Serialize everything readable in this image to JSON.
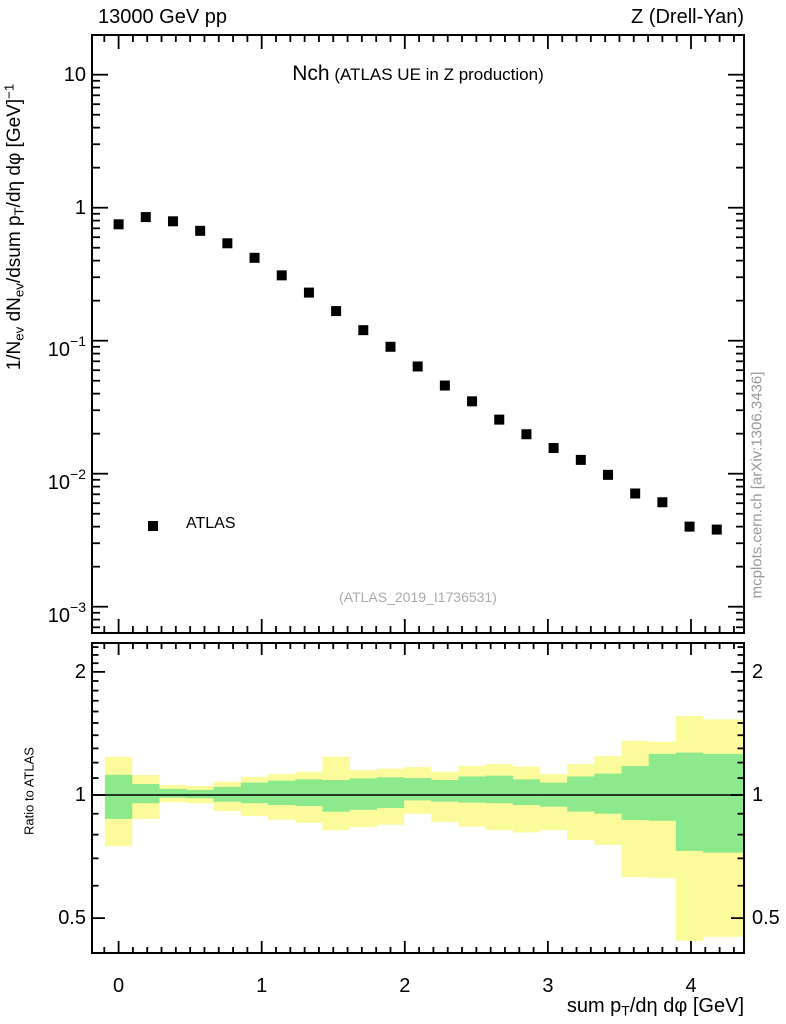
{
  "header": {
    "left": "13000 GeV pp",
    "right": "Z (Drell-Yan)"
  },
  "title": {
    "main": "Nch",
    "sub": " (ATLAS UE in Z production)"
  },
  "watermark": "(ATLAS_2019_I1736531)",
  "side_note": "mcplots.cern.ch [arXiv:1306.3436]",
  "legend": {
    "label": "ATLAS"
  },
  "ratio_label": "Ratio to ATLAS",
  "colors": {
    "band_outer": "#FBFB9C",
    "band_inner": "#8CE98C",
    "marker": "#000000",
    "frame": "#000000",
    "side_note_gray": "#999999",
    "watermark_gray": "#ababab"
  },
  "axes": {
    "x": {
      "label_parts": [
        {
          "t": "sum p"
        },
        {
          "t": "T",
          "s": "sub"
        },
        {
          "t": "/dη dφ [GeV]"
        }
      ],
      "ticks": [
        {
          "v": 0,
          "t": "0"
        },
        {
          "v": 1,
          "t": "1"
        },
        {
          "v": 2,
          "t": "2"
        },
        {
          "v": 3,
          "t": "3"
        },
        {
          "v": 4,
          "t": "4"
        }
      ],
      "minor_step": 0.1,
      "range": [
        -0.186,
        4.372
      ]
    },
    "y_main": {
      "label_parts": [
        {
          "t": "1/N"
        },
        {
          "t": "ev",
          "s": "sub"
        },
        {
          "t": " dN"
        },
        {
          "t": "ev",
          "s": "sub"
        },
        {
          "t": "/dsum p"
        },
        {
          "t": "T",
          "s": "sub"
        },
        {
          "t": "/dη dφ  [GeV]"
        },
        {
          "t": "−1",
          "s": "sup"
        }
      ],
      "scale": "log",
      "range": [
        0.00063,
        19.9
      ],
      "ticks": [
        {
          "v": 10,
          "parts": [
            {
              "t": "10"
            }
          ]
        },
        {
          "v": 1,
          "parts": [
            {
              "t": "1"
            }
          ]
        },
        {
          "v": 0.1,
          "parts": [
            {
              "t": "10"
            },
            {
              "t": "−1",
              "s": "sup"
            }
          ]
        },
        {
          "v": 0.01,
          "parts": [
            {
              "t": "10"
            },
            {
              "t": "−2",
              "s": "sup"
            }
          ]
        },
        {
          "v": 0.001,
          "parts": [
            {
              "t": "10"
            },
            {
              "t": "−3",
              "s": "sup"
            }
          ]
        }
      ]
    },
    "y_ratio": {
      "scale": "log",
      "range": [
        0.411,
        2.35
      ],
      "ticks": [
        {
          "v": 2,
          "t": "2"
        },
        {
          "v": 1,
          "t": "1"
        },
        {
          "v": 0.5,
          "t": "0.5"
        }
      ]
    }
  },
  "chart_data": [
    {
      "type": "scatter",
      "panel": "main",
      "title": "Nch (ATLAS UE in Z production)",
      "xlabel": "sum pT/dη dφ [GeV]",
      "ylabel": "1/Nev dNev/dsum pT/dη dφ [GeV]^-1",
      "xscale": "linear",
      "yscale": "log",
      "xlim": [
        -0.19,
        4.37
      ],
      "ylim": [
        0.00063,
        19.9
      ],
      "series": [
        {
          "name": "ATLAS",
          "marker": "filled-square",
          "color": "#000000",
          "x": [
            0.0,
            0.19,
            0.38,
            0.57,
            0.76,
            0.95,
            1.14,
            1.33,
            1.52,
            1.71,
            1.9,
            2.09,
            2.28,
            2.47,
            2.66,
            2.85,
            3.04,
            3.23,
            3.42,
            3.61,
            3.8,
            3.99,
            4.18
          ],
          "y": [
            0.75,
            0.85,
            0.79,
            0.67,
            0.54,
            0.42,
            0.31,
            0.23,
            0.167,
            0.12,
            0.09,
            0.064,
            0.046,
            0.035,
            0.0255,
            0.0198,
            0.0156,
            0.0127,
            0.0098,
            0.0071,
            0.0061,
            0.004,
            0.0038
          ]
        }
      ]
    },
    {
      "type": "area",
      "panel": "ratio",
      "title": "Ratio to ATLAS",
      "yscale": "log",
      "ylim": [
        0.41,
        2.35
      ],
      "bin_half_width": 0.0955,
      "x": [
        0.0,
        0.19,
        0.38,
        0.57,
        0.76,
        0.95,
        1.14,
        1.33,
        1.52,
        1.71,
        1.9,
        2.09,
        2.28,
        2.47,
        2.66,
        2.85,
        3.04,
        3.23,
        3.42,
        3.61,
        3.8,
        3.99,
        4.18
      ],
      "band_outer_lo": [
        0.75,
        0.874,
        0.96,
        0.954,
        0.914,
        0.888,
        0.87,
        0.855,
        0.82,
        0.835,
        0.846,
        0.9,
        0.86,
        0.837,
        0.821,
        0.81,
        0.821,
        0.776,
        0.755,
        0.63,
        0.627,
        0.44,
        0.45
      ],
      "band_outer_hi": [
        1.24,
        1.119,
        1.058,
        1.052,
        1.078,
        1.108,
        1.125,
        1.14,
        1.24,
        1.15,
        1.16,
        1.17,
        1.14,
        1.177,
        1.19,
        1.173,
        1.125,
        1.19,
        1.245,
        1.357,
        1.35,
        1.56,
        1.53
      ],
      "band_inner_lo": [
        0.874,
        0.955,
        0.985,
        0.982,
        0.963,
        0.955,
        0.945,
        0.94,
        0.91,
        0.92,
        0.929,
        0.97,
        0.963,
        0.958,
        0.955,
        0.945,
        0.936,
        0.911,
        0.9,
        0.869,
        0.865,
        0.73,
        0.723
      ],
      "band_inner_hi": [
        1.12,
        1.064,
        1.035,
        1.029,
        1.047,
        1.072,
        1.084,
        1.092,
        1.088,
        1.098,
        1.105,
        1.1,
        1.088,
        1.11,
        1.115,
        1.092,
        1.072,
        1.11,
        1.128,
        1.177,
        1.26,
        1.27,
        1.26
      ],
      "reference_line": 1.0
    }
  ]
}
